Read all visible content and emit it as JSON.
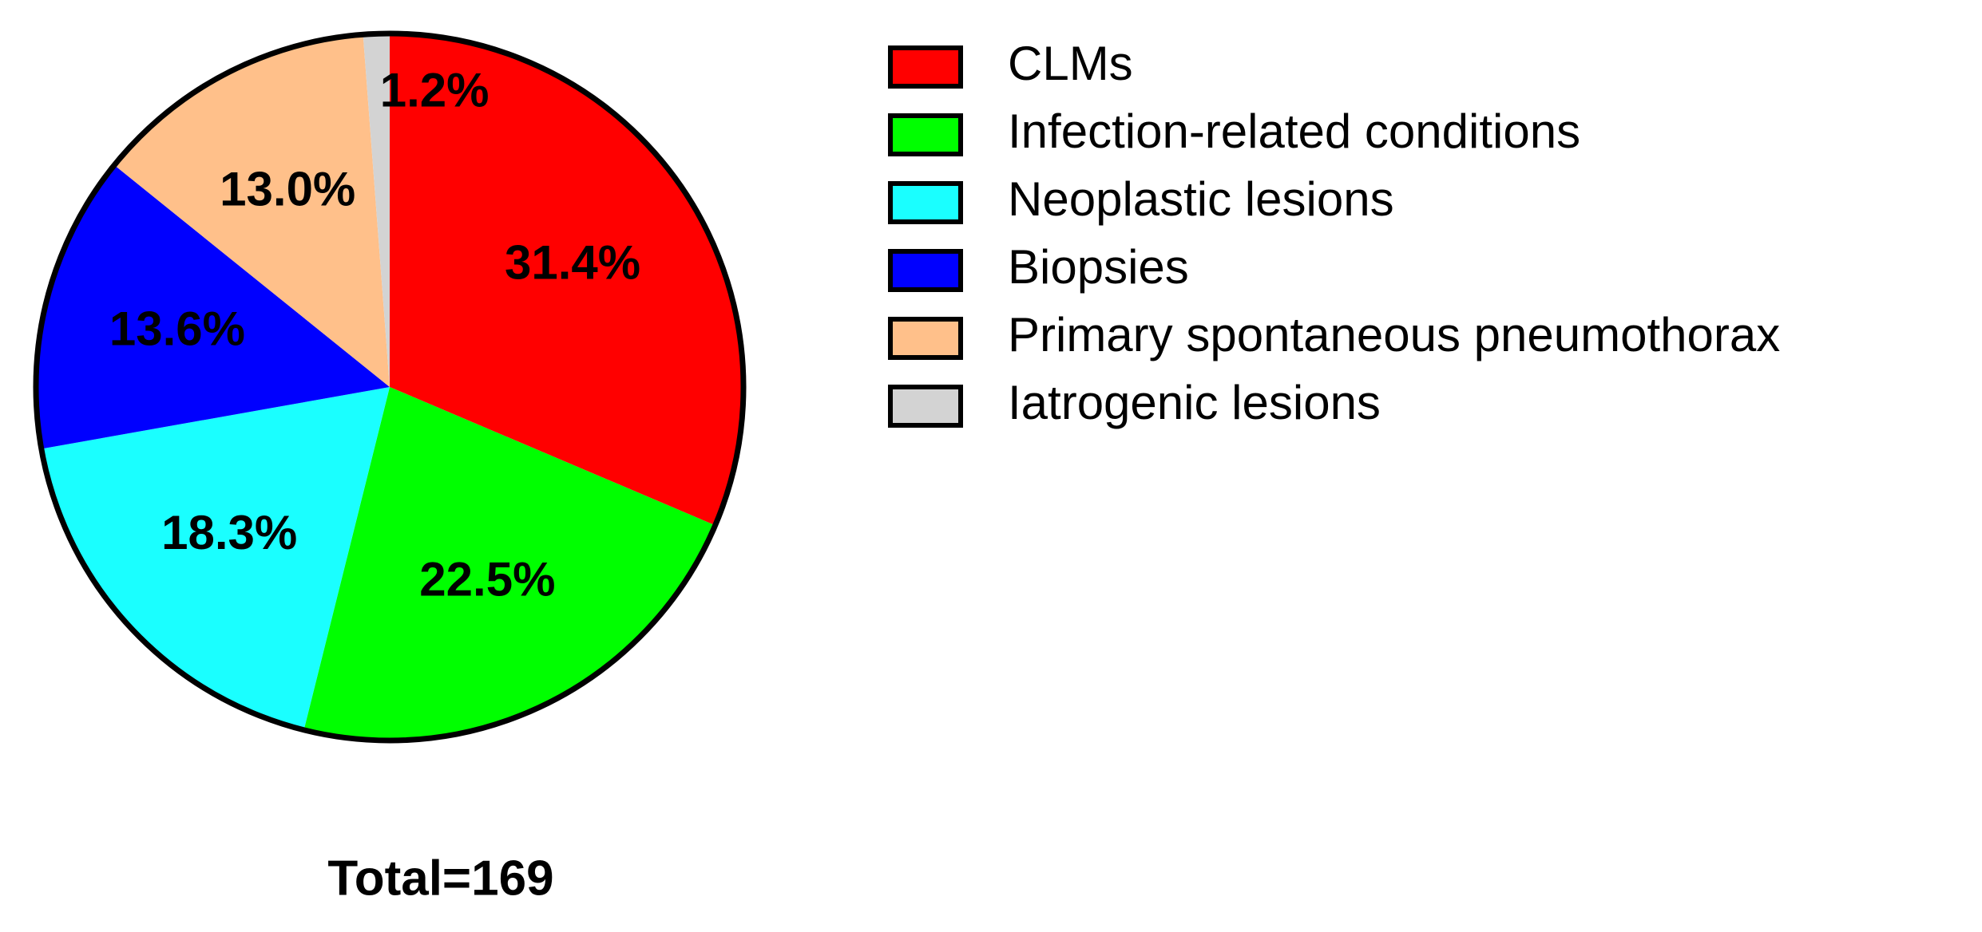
{
  "chart_data": {
    "type": "pie",
    "categories": [
      "CLMs",
      "Infection-related conditions",
      "Neoplastic lesions",
      "Biopsies",
      "Primary spontaneous pneumothorax",
      "Iatrogenic lesions"
    ],
    "values": [
      31.4,
      22.5,
      18.3,
      13.6,
      13.0,
      1.2
    ],
    "value_labels": [
      "31.4%",
      "22.5%",
      "18.3%",
      "13.6%",
      "13.0%",
      "1.2%"
    ],
    "colors": [
      "#ff0000",
      "#00ff00",
      "#1affff",
      "#0000ff",
      "#ffc08a",
      "#d3d3d3"
    ],
    "annotation": "Total=169"
  }
}
